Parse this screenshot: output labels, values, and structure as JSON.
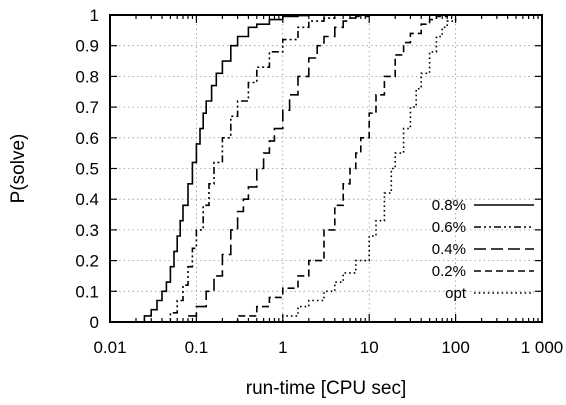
{
  "chart_data": {
    "type": "line",
    "title": "",
    "xlabel": "run-time [CPU sec]",
    "ylabel": "P(solve)",
    "xscale": "log",
    "xlim": [
      0.01,
      1000
    ],
    "ylim": [
      0,
      1
    ],
    "xticks": [
      0.01,
      0.1,
      1,
      10,
      100,
      1000
    ],
    "xtick_labels": [
      "0.01",
      "0.1",
      "1",
      "10",
      "100",
      "1 000"
    ],
    "yticks": [
      0,
      0.1,
      0.2,
      0.3,
      0.4,
      0.5,
      0.6,
      0.7,
      0.8,
      0.9,
      1
    ],
    "ytick_labels": [
      "0",
      "0.1",
      "0.2",
      "0.3",
      "0.4",
      "0.5",
      "0.6",
      "0.7",
      "0.8",
      "0.9",
      "1"
    ],
    "grid": true,
    "legend_position": "bottom-right",
    "series": [
      {
        "name": "0.8%",
        "dash": "solid",
        "x": [
          0.018,
          0.025,
          0.03,
          0.035,
          0.04,
          0.045,
          0.05,
          0.055,
          0.06,
          0.065,
          0.07,
          0.08,
          0.09,
          0.1,
          0.11,
          0.12,
          0.13,
          0.15,
          0.17,
          0.2,
          0.25,
          0.3,
          0.4,
          0.5,
          0.7,
          1,
          1.5,
          2,
          2.5
        ],
        "y": [
          0,
          0.02,
          0.04,
          0.07,
          0.1,
          0.13,
          0.18,
          0.23,
          0.28,
          0.33,
          0.38,
          0.45,
          0.52,
          0.58,
          0.63,
          0.68,
          0.72,
          0.77,
          0.81,
          0.85,
          0.9,
          0.93,
          0.96,
          0.97,
          0.985,
          0.995,
          0.998,
          1,
          1
        ]
      },
      {
        "name": "0.6%",
        "dash": "dash-dot-dot",
        "x": [
          0.04,
          0.05,
          0.06,
          0.07,
          0.08,
          0.09,
          0.1,
          0.12,
          0.14,
          0.16,
          0.2,
          0.25,
          0.3,
          0.4,
          0.5,
          0.7,
          1,
          1.5,
          2,
          3,
          4
        ],
        "y": [
          0,
          0.03,
          0.07,
          0.12,
          0.18,
          0.24,
          0.3,
          0.38,
          0.45,
          0.52,
          0.6,
          0.67,
          0.72,
          0.78,
          0.83,
          0.88,
          0.92,
          0.96,
          0.98,
          0.99,
          1
        ]
      },
      {
        "name": "0.4%",
        "dash": "long-dash",
        "x": [
          0.06,
          0.08,
          0.1,
          0.13,
          0.16,
          0.2,
          0.25,
          0.3,
          0.35,
          0.4,
          0.5,
          0.6,
          0.7,
          0.8,
          1,
          1.2,
          1.5,
          2,
          2.5,
          3,
          4,
          5,
          6,
          7,
          10
        ],
        "y": [
          0,
          0.02,
          0.05,
          0.1,
          0.15,
          0.22,
          0.3,
          0.36,
          0.4,
          0.44,
          0.5,
          0.55,
          0.59,
          0.63,
          0.69,
          0.74,
          0.8,
          0.86,
          0.9,
          0.93,
          0.96,
          0.98,
          0.99,
          0.995,
          1
        ]
      },
      {
        "name": "0.2%",
        "dash": "dashed",
        "x": [
          0.2,
          0.3,
          0.5,
          0.7,
          1,
          1.5,
          2,
          3,
          4,
          5,
          6,
          7,
          8,
          10,
          12,
          15,
          20,
          25,
          30,
          40,
          50,
          60,
          80,
          100
        ],
        "y": [
          0,
          0.02,
          0.05,
          0.08,
          0.11,
          0.15,
          0.2,
          0.3,
          0.38,
          0.45,
          0.5,
          0.55,
          0.6,
          0.68,
          0.74,
          0.8,
          0.87,
          0.91,
          0.94,
          0.97,
          0.985,
          0.995,
          1,
          1
        ]
      },
      {
        "name": "opt",
        "dash": "dotted",
        "x": [
          0.7,
          1,
          1.5,
          2,
          3,
          4,
          5,
          7,
          10,
          12,
          15,
          18,
          20,
          25,
          30,
          35,
          40,
          50,
          60,
          70,
          80,
          100
        ],
        "y": [
          0,
          0.02,
          0.05,
          0.07,
          0.1,
          0.13,
          0.16,
          0.2,
          0.28,
          0.33,
          0.42,
          0.5,
          0.55,
          0.63,
          0.7,
          0.76,
          0.81,
          0.88,
          0.93,
          0.96,
          0.98,
          1
        ]
      }
    ]
  }
}
